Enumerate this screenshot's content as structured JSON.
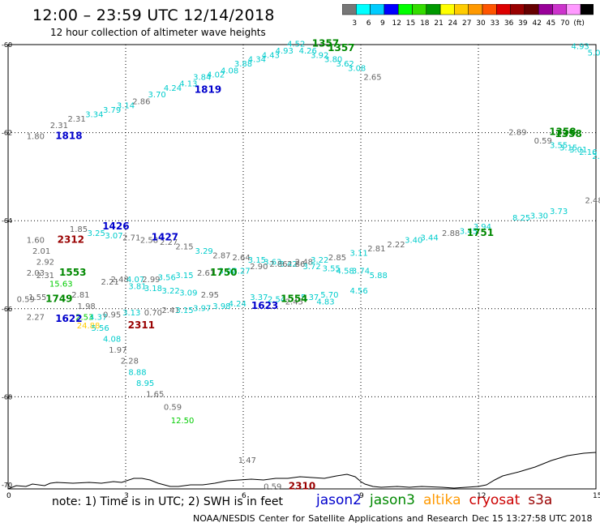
{
  "header": {
    "title": "12:00 – 23:59 UTC 12/14/2018",
    "subtitle": "12 hour collection of altimeter wave heights"
  },
  "colorbar": {
    "colors": [
      "#777777",
      "#00ffff",
      "#00ccff",
      "#0000ff",
      "#00ff00",
      "#33dd00",
      "#009900",
      "#ffff00",
      "#ffcc00",
      "#ff9900",
      "#ff5500",
      "#dd0000",
      "#990000",
      "#660000",
      "#990099",
      "#cc33cc",
      "#ff99ff",
      "#000000"
    ],
    "labels": [
      "3",
      "6",
      "9",
      "12",
      "15",
      "18",
      "21",
      "24",
      "27",
      "30",
      "33",
      "36",
      "39",
      "42",
      "45",
      "70",
      "(ft)"
    ]
  },
  "note": "note: 1) Time is in UTC; 2) SWH is in feet",
  "legend": [
    {
      "name": "jason2",
      "color": "#0000cc"
    },
    {
      "name": "jason3",
      "color": "#008800"
    },
    {
      "name": "altika",
      "color": "#ff9900"
    },
    {
      "name": "cryosat",
      "color": "#cc0000"
    },
    {
      "name": "s3a",
      "color": "#990000"
    }
  ],
  "credit": "NOAA/NESDIS Center for Satellite Applications and Research",
  "timestamp": "Dec 15 13:27:58 UTC 2018",
  "chart_data": {
    "type": "scatter",
    "x_ticks": [
      "0",
      "3",
      "6",
      "9",
      "12",
      "15"
    ],
    "y_ticks": [
      "-60",
      "-62",
      "-64",
      "-66",
      "-68",
      "-70"
    ],
    "xlim": [
      0,
      15
    ],
    "ylim": [
      -70,
      -60
    ],
    "grid": true,
    "points": [
      {
        "x": 0.7,
        "y": -62.15,
        "label": "1.80",
        "color": "#666666"
      },
      {
        "x": 1.3,
        "y": -61.9,
        "label": "2.31",
        "color": "#666666"
      },
      {
        "x": 1.75,
        "y": -61.75,
        "label": "2.31",
        "color": "#666666"
      },
      {
        "x": 2.2,
        "y": -61.65,
        "label": "3.34",
        "color": "#00cccc"
      },
      {
        "x": 2.65,
        "y": -61.55,
        "label": "3.79",
        "color": "#00cccc"
      },
      {
        "x": 3.0,
        "y": -61.45,
        "label": "3.14",
        "color": "#00cccc"
      },
      {
        "x": 3.4,
        "y": -61.35,
        "label": "2.86",
        "color": "#666666"
      },
      {
        "x": 3.8,
        "y": -61.2,
        "label": "3.70",
        "color": "#00cccc"
      },
      {
        "x": 4.2,
        "y": -61.05,
        "label": "4.24",
        "color": "#00cccc"
      },
      {
        "x": 4.6,
        "y": -60.95,
        "label": "4.13",
        "color": "#00cccc"
      },
      {
        "x": 4.95,
        "y": -60.8,
        "label": "3.84",
        "color": "#00cccc"
      },
      {
        "x": 5.3,
        "y": -60.75,
        "label": "4.02",
        "color": "#00cccc"
      },
      {
        "x": 5.65,
        "y": -60.65,
        "label": "4.08",
        "color": "#00cccc"
      },
      {
        "x": 6.0,
        "y": -60.5,
        "label": "3.88",
        "color": "#00cccc"
      },
      {
        "x": 6.35,
        "y": -60.4,
        "label": "4.34",
        "color": "#00cccc"
      },
      {
        "x": 6.7,
        "y": -60.3,
        "label": "4.43",
        "color": "#00cccc"
      },
      {
        "x": 7.05,
        "y": -60.2,
        "label": "4.93",
        "color": "#00cccc"
      },
      {
        "x": 7.35,
        "y": -60.05,
        "label": "4.52",
        "color": "#00cccc"
      },
      {
        "x": 7.65,
        "y": -60.2,
        "label": "4.26",
        "color": "#00cccc"
      },
      {
        "x": 7.95,
        "y": -60.3,
        "label": "3.92",
        "color": "#00cccc"
      },
      {
        "x": 8.3,
        "y": -60.4,
        "label": "3.80",
        "color": "#00cccc"
      },
      {
        "x": 8.6,
        "y": -60.5,
        "label": "3.62",
        "color": "#00cccc"
      },
      {
        "x": 8.9,
        "y": -60.6,
        "label": "3.08",
        "color": "#00cccc"
      },
      {
        "x": 9.3,
        "y": -60.8,
        "label": "2.65",
        "color": "#666666"
      },
      {
        "x": 1.8,
        "y": -64.25,
        "label": "1.85",
        "color": "#666666"
      },
      {
        "x": 2.25,
        "y": -64.35,
        "label": "3.25",
        "color": "#00cccc"
      },
      {
        "x": 2.7,
        "y": -64.4,
        "label": "3.07",
        "color": "#00cccc"
      },
      {
        "x": 3.15,
        "y": -64.45,
        "label": "2.71",
        "color": "#666666"
      },
      {
        "x": 3.6,
        "y": -64.5,
        "label": "2.58",
        "color": "#666666"
      },
      {
        "x": 4.1,
        "y": -64.55,
        "label": "2.27",
        "color": "#666666"
      },
      {
        "x": 4.5,
        "y": -64.65,
        "label": "2.15",
        "color": "#666666"
      },
      {
        "x": 5.0,
        "y": -64.75,
        "label": "3.29",
        "color": "#00cccc"
      },
      {
        "x": 5.45,
        "y": -64.85,
        "label": "2.87",
        "color": "#666666"
      },
      {
        "x": 5.95,
        "y": -64.9,
        "label": "2.64",
        "color": "#666666"
      },
      {
        "x": 6.35,
        "y": -64.95,
        "label": "3.15",
        "color": "#00cccc"
      },
      {
        "x": 6.75,
        "y": -65.0,
        "label": "3.63",
        "color": "#00cccc"
      },
      {
        "x": 7.15,
        "y": -65.05,
        "label": "3.42",
        "color": "#00cccc"
      },
      {
        "x": 7.55,
        "y": -65.0,
        "label": "2.48",
        "color": "#666666"
      },
      {
        "x": 7.95,
        "y": -64.95,
        "label": "3.22",
        "color": "#00cccc"
      },
      {
        "x": 8.4,
        "y": -64.9,
        "label": "2.85",
        "color": "#666666"
      },
      {
        "x": 8.95,
        "y": -64.8,
        "label": "3.11",
        "color": "#00cccc"
      },
      {
        "x": 9.4,
        "y": -64.7,
        "label": "2.81",
        "color": "#666666"
      },
      {
        "x": 9.9,
        "y": -64.6,
        "label": "2.22",
        "color": "#666666"
      },
      {
        "x": 10.35,
        "y": -64.5,
        "label": "3.40",
        "color": "#00cccc"
      },
      {
        "x": 10.75,
        "y": -64.45,
        "label": "3.44",
        "color": "#00cccc"
      },
      {
        "x": 11.3,
        "y": -64.35,
        "label": "2.88",
        "color": "#666666"
      },
      {
        "x": 11.75,
        "y": -64.3,
        "label": "3.45",
        "color": "#00cccc"
      },
      {
        "x": 12.1,
        "y": -64.2,
        "label": "3.94",
        "color": "#00cccc"
      },
      {
        "x": 13.1,
        "y": -64.0,
        "label": "8.25",
        "color": "#00cccc"
      },
      {
        "x": 13.55,
        "y": -63.95,
        "label": "3.30",
        "color": "#00cccc"
      },
      {
        "x": 14.05,
        "y": -63.85,
        "label": "3.73",
        "color": "#00cccc"
      },
      {
        "x": 14.95,
        "y": -63.6,
        "label": "2.48",
        "color": "#666666"
      },
      {
        "x": 13.0,
        "y": -62.05,
        "label": "2.89",
        "color": "#666666"
      },
      {
        "x": 13.65,
        "y": -62.25,
        "label": "0.59",
        "color": "#666666"
      },
      {
        "x": 14.05,
        "y": -62.35,
        "label": "3.55",
        "color": "#00cccc"
      },
      {
        "x": 14.3,
        "y": -62.4,
        "label": "3.15",
        "color": "#00cccc"
      },
      {
        "x": 14.55,
        "y": -62.45,
        "label": "3.01",
        "color": "#00cccc"
      },
      {
        "x": 14.8,
        "y": -62.5,
        "label": "2.16",
        "color": "#00cccc"
      },
      {
        "x": 15.0,
        "y": -62.6,
        "label": "2.",
        "color": "#00cccc"
      },
      {
        "x": 14.6,
        "y": -60.1,
        "label": "4.93",
        "color": "#00cccc"
      },
      {
        "x": 14.95,
        "y": -60.25,
        "label": "5.0",
        "color": "#00cccc"
      },
      {
        "x": 0.7,
        "y": -64.5,
        "label": "1.60",
        "color": "#666666"
      },
      {
        "x": 0.85,
        "y": -64.75,
        "label": "2.01",
        "color": "#666666"
      },
      {
        "x": 0.95,
        "y": -65.0,
        "label": "2.92",
        "color": "#666666"
      },
      {
        "x": 0.7,
        "y": -65.25,
        "label": "2.03",
        "color": "#666666"
      },
      {
        "x": 0.95,
        "y": -65.3,
        "label": "2.31",
        "color": "#666666"
      },
      {
        "x": 1.35,
        "y": -65.5,
        "label": "15.63",
        "color": "#00cc00"
      },
      {
        "x": 0.45,
        "y": -65.85,
        "label": "0.59",
        "color": "#666666"
      },
      {
        "x": 0.75,
        "y": -65.8,
        "label": "1.55",
        "color": "#666666"
      },
      {
        "x": 1.85,
        "y": -65.75,
        "label": "2.81",
        "color": "#666666"
      },
      {
        "x": 2.0,
        "y": -66.0,
        "label": "1.98",
        "color": "#666666"
      },
      {
        "x": 0.7,
        "y": -66.25,
        "label": "2.27",
        "color": "#666666"
      },
      {
        "x": 1.95,
        "y": -66.25,
        "label": "2.53",
        "color": "#00cc00"
      },
      {
        "x": 2.3,
        "y": -66.25,
        "label": "4.37",
        "color": "#00cccc"
      },
      {
        "x": 2.65,
        "y": -66.2,
        "label": "0.95",
        "color": "#666666"
      },
      {
        "x": 3.15,
        "y": -66.15,
        "label": "3.13",
        "color": "#00cccc"
      },
      {
        "x": 3.7,
        "y": -66.15,
        "label": "0.70",
        "color": "#666666"
      },
      {
        "x": 4.15,
        "y": -66.1,
        "label": "2.41",
        "color": "#666666"
      },
      {
        "x": 4.5,
        "y": -66.1,
        "label": "3.15",
        "color": "#00cccc"
      },
      {
        "x": 4.95,
        "y": -66.05,
        "label": "3.97",
        "color": "#00cccc"
      },
      {
        "x": 5.45,
        "y": -66.0,
        "label": "3.98",
        "color": "#00cccc"
      },
      {
        "x": 5.85,
        "y": -65.95,
        "label": "4.24",
        "color": "#00cccc"
      },
      {
        "x": 6.4,
        "y": -65.8,
        "label": "3.37",
        "color": "#00cccc"
      },
      {
        "x": 6.85,
        "y": -65.85,
        "label": "2.54",
        "color": "#00cccc"
      },
      {
        "x": 7.3,
        "y": -65.9,
        "label": "2.45",
        "color": "#666666"
      },
      {
        "x": 7.7,
        "y": -65.8,
        "label": "5.37",
        "color": "#00cccc"
      },
      {
        "x": 8.2,
        "y": -65.75,
        "label": "5.70",
        "color": "#00cccc"
      },
      {
        "x": 8.1,
        "y": -65.9,
        "label": "4.83",
        "color": "#00cccc"
      },
      {
        "x": 8.95,
        "y": -65.65,
        "label": "4.56",
        "color": "#00cccc"
      },
      {
        "x": 2.6,
        "y": -65.45,
        "label": "2.21",
        "color": "#666666"
      },
      {
        "x": 2.85,
        "y": -65.4,
        "label": "2.48",
        "color": "#666666"
      },
      {
        "x": 3.25,
        "y": -65.4,
        "label": "4.07",
        "color": "#00cccc"
      },
      {
        "x": 3.65,
        "y": -65.4,
        "label": "2.99",
        "color": "#666666"
      },
      {
        "x": 4.05,
        "y": -65.35,
        "label": "3.56",
        "color": "#00cccc"
      },
      {
        "x": 4.5,
        "y": -65.3,
        "label": "3.15",
        "color": "#00cccc"
      },
      {
        "x": 5.05,
        "y": -65.25,
        "label": "2.61",
        "color": "#666666"
      },
      {
        "x": 5.6,
        "y": -65.2,
        "label": "3.02",
        "color": "#00cccc"
      },
      {
        "x": 5.95,
        "y": -65.2,
        "label": "3.27",
        "color": "#00cccc"
      },
      {
        "x": 6.4,
        "y": -65.1,
        "label": "2.90",
        "color": "#666666"
      },
      {
        "x": 6.9,
        "y": -65.05,
        "label": "2.86",
        "color": "#666666"
      },
      {
        "x": 7.35,
        "y": -65.05,
        "label": "2.86",
        "color": "#666666"
      },
      {
        "x": 7.75,
        "y": -65.1,
        "label": "3.72",
        "color": "#00cccc"
      },
      {
        "x": 8.25,
        "y": -65.15,
        "label": "3.55",
        "color": "#00cccc"
      },
      {
        "x": 8.6,
        "y": -65.2,
        "label": "4.58",
        "color": "#00cccc"
      },
      {
        "x": 9.0,
        "y": -65.2,
        "label": "3.74",
        "color": "#00cccc"
      },
      {
        "x": 9.45,
        "y": -65.3,
        "label": "5.88",
        "color": "#00cccc"
      },
      {
        "x": 3.3,
        "y": -65.55,
        "label": "3.81",
        "color": "#00cccc"
      },
      {
        "x": 3.7,
        "y": -65.6,
        "label": "3.18",
        "color": "#00cccc"
      },
      {
        "x": 4.15,
        "y": -65.65,
        "label": "3.22",
        "color": "#00cccc"
      },
      {
        "x": 4.6,
        "y": -65.7,
        "label": "3.09",
        "color": "#00cccc"
      },
      {
        "x": 5.15,
        "y": -65.75,
        "label": "2.95",
        "color": "#666666"
      },
      {
        "x": 2.05,
        "y": -66.45,
        "label": "24.88",
        "color": "#ffcc00"
      },
      {
        "x": 2.35,
        "y": -66.5,
        "label": "5.56",
        "color": "#00cccc"
      },
      {
        "x": 2.65,
        "y": -66.75,
        "label": "4.08",
        "color": "#00cccc"
      },
      {
        "x": 2.8,
        "y": -67.0,
        "label": "1.97",
        "color": "#666666"
      },
      {
        "x": 3.1,
        "y": -67.25,
        "label": "2.28",
        "color": "#666666"
      },
      {
        "x": 3.3,
        "y": -67.5,
        "label": "8.88",
        "color": "#00cccc"
      },
      {
        "x": 3.5,
        "y": -67.75,
        "label": "8.95",
        "color": "#00cccc"
      },
      {
        "x": 3.75,
        "y": -68.0,
        "label": "1.65",
        "color": "#666666"
      },
      {
        "x": 4.2,
        "y": -68.3,
        "label": "0.59",
        "color": "#666666"
      },
      {
        "x": 4.45,
        "y": -68.6,
        "label": "12.50",
        "color": "#00cc00"
      },
      {
        "x": 6.1,
        "y": -69.5,
        "label": "1.47",
        "color": "#666666"
      },
      {
        "x": 6.75,
        "y": -70.1,
        "label": "0.59",
        "color": "#666666"
      }
    ],
    "pass_labels": [
      {
        "x": 1.55,
        "y": -62.15,
        "label": "1818",
        "color": "#0000cc"
      },
      {
        "x": 5.1,
        "y": -61.1,
        "label": "1819",
        "color": "#0000cc"
      },
      {
        "x": 8.1,
        "y": -60.05,
        "label": "1357",
        "color": "#008800"
      },
      {
        "x": 8.5,
        "y": -60.15,
        "label": "1357",
        "color": "#008800"
      },
      {
        "x": 14.15,
        "y": -62.05,
        "label": "1358",
        "color": "#008800"
      },
      {
        "x": 14.3,
        "y": -62.1,
        "label": "1358",
        "color": "#008800"
      },
      {
        "x": 2.75,
        "y": -64.2,
        "label": "1426",
        "color": "#0000cc"
      },
      {
        "x": 4.0,
        "y": -64.45,
        "label": "1427",
        "color": "#0000cc"
      },
      {
        "x": 1.6,
        "y": -64.5,
        "label": "2312",
        "color": "#990000"
      },
      {
        "x": 1.65,
        "y": -65.25,
        "label": "1553",
        "color": "#008800"
      },
      {
        "x": 5.5,
        "y": -65.25,
        "label": "1750",
        "color": "#008800"
      },
      {
        "x": 1.3,
        "y": -65.85,
        "label": "1749",
        "color": "#008800"
      },
      {
        "x": 1.55,
        "y": -66.3,
        "label": "1622",
        "color": "#0000cc"
      },
      {
        "x": 6.55,
        "y": -66.0,
        "label": "1623",
        "color": "#0000cc"
      },
      {
        "x": 7.3,
        "y": -65.85,
        "label": "1554",
        "color": "#008800"
      },
      {
        "x": 3.4,
        "y": -66.45,
        "label": "2311",
        "color": "#990000"
      },
      {
        "x": 12.05,
        "y": -64.35,
        "label": "1751",
        "color": "#008800"
      },
      {
        "x": 7.5,
        "y": -70.1,
        "label": "2310",
        "color": "#990000"
      }
    ]
  }
}
